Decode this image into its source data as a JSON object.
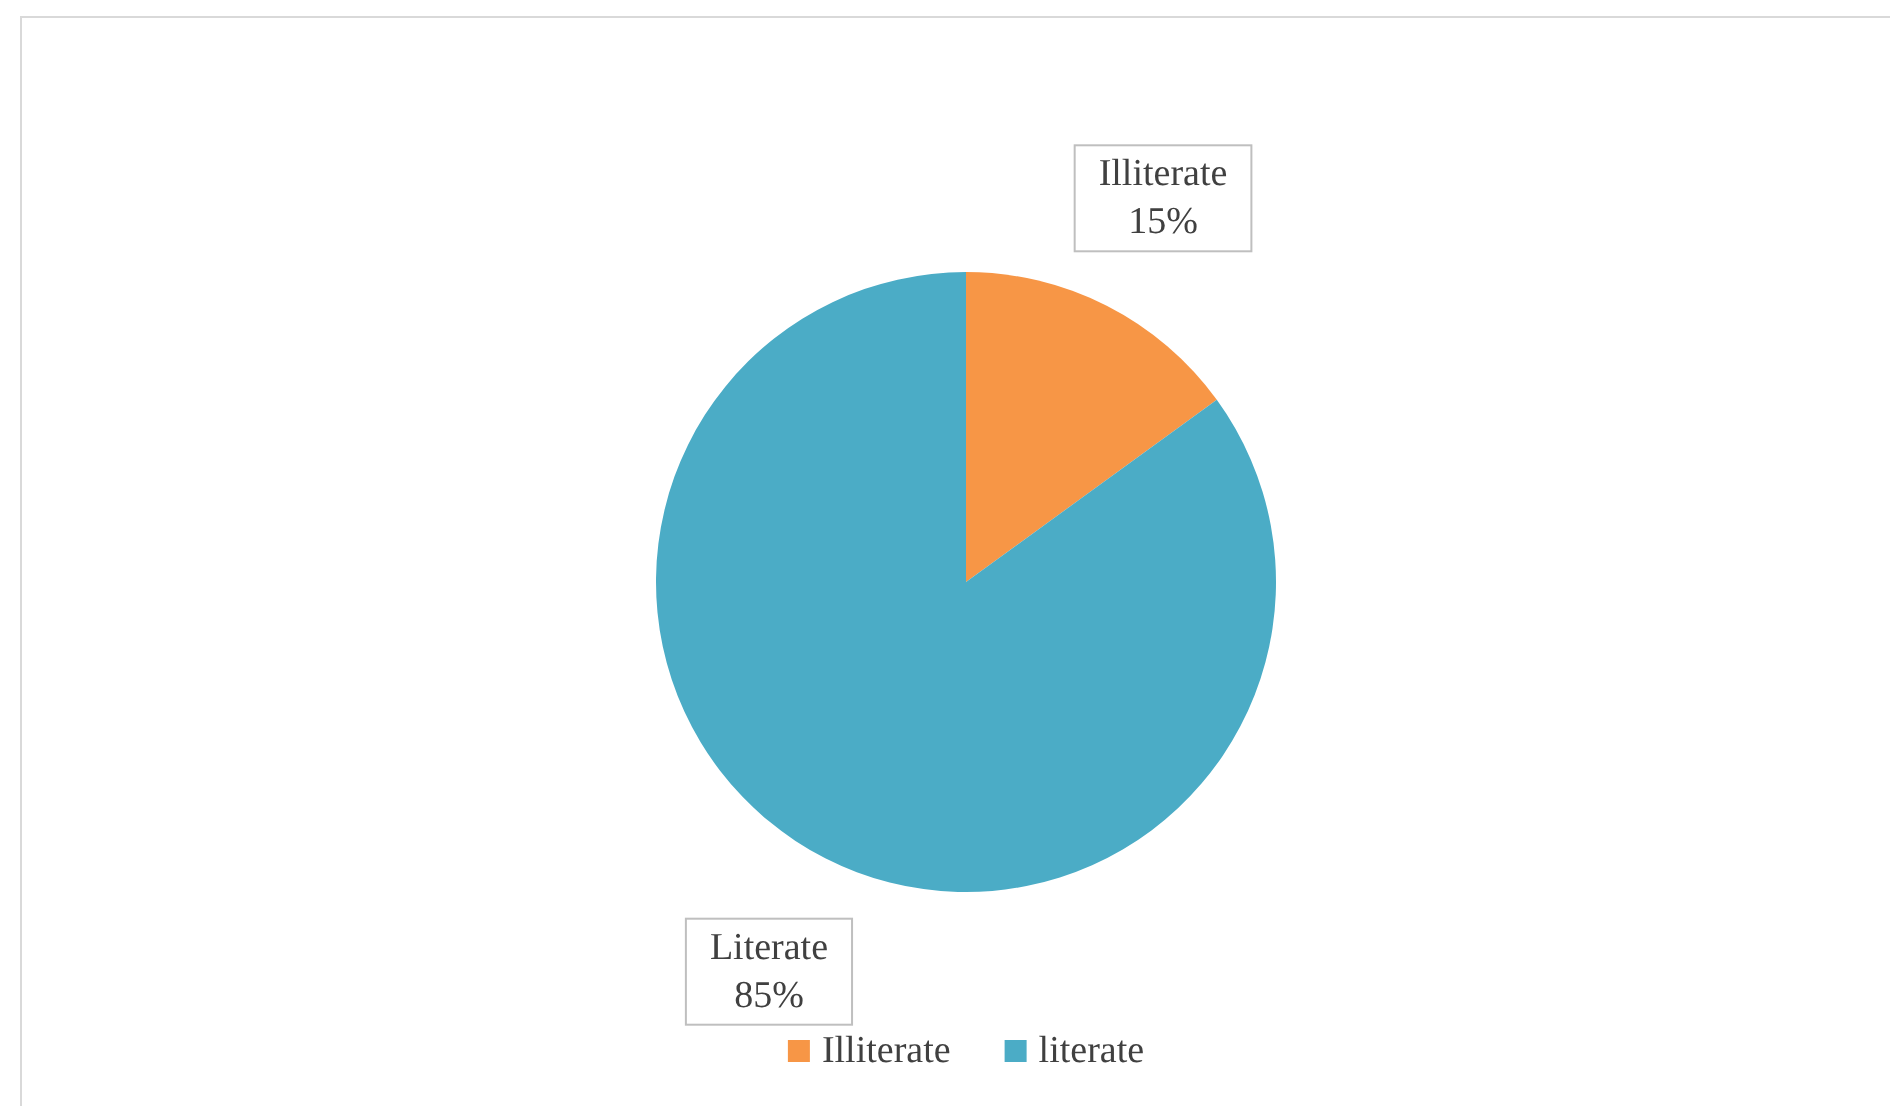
{
  "chart_data": {
    "type": "pie",
    "categories": [
      "Illiterate",
      "literate"
    ],
    "values": [
      15,
      85
    ],
    "colors": [
      "#f79646",
      "#4bacc6"
    ],
    "value_labels": [
      "Illiterate\n15%",
      "Literate\n85%"
    ],
    "legend": "bottom"
  }
}
